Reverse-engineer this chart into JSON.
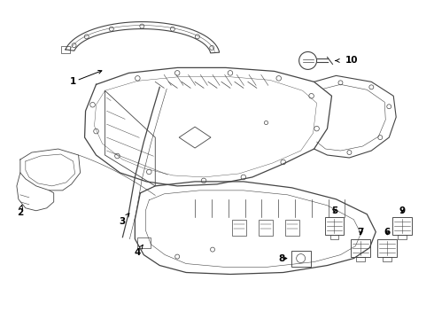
{
  "background_color": "#ffffff",
  "fig_width": 4.9,
  "fig_height": 3.6,
  "dpi": 100,
  "line_color": "#444444",
  "text_color": "#000000",
  "label_fontsize": 7.5
}
